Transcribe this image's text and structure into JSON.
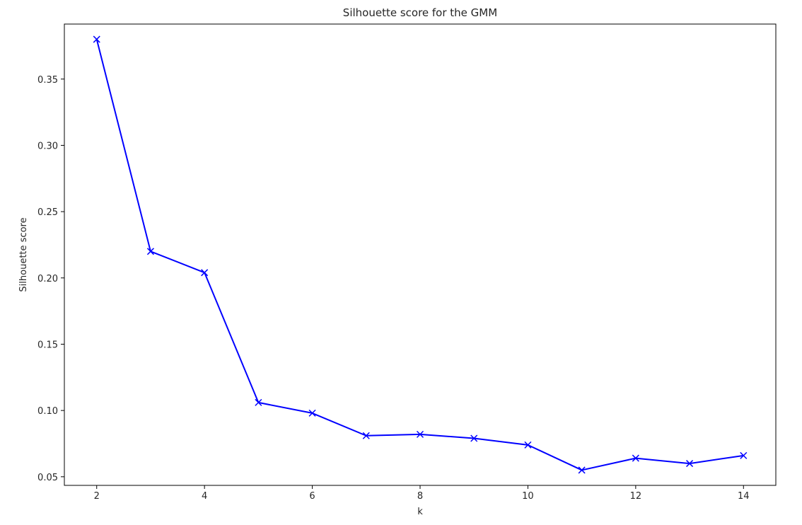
{
  "chart_data": {
    "type": "line",
    "title": "Silhouette score for the GMM",
    "xlabel": "k",
    "ylabel": "Silhouette score",
    "x": [
      2,
      3,
      4,
      5,
      6,
      7,
      8,
      9,
      10,
      11,
      12,
      13,
      14
    ],
    "series": [
      {
        "values": [
          0.38,
          0.22,
          0.204,
          0.106,
          0.098,
          0.081,
          0.082,
          0.079,
          0.074,
          0.055,
          0.064,
          0.06,
          0.066
        ],
        "color": "#0000ff",
        "marker": "x"
      }
    ],
    "xlim": [
      1.4,
      14.6
    ],
    "ylim": [
      0.0435,
      0.3915
    ],
    "xticks": [
      2,
      4,
      6,
      8,
      10,
      12,
      14
    ],
    "xtick_labels": [
      "2",
      "4",
      "6",
      "8",
      "10",
      "12",
      "14"
    ],
    "yticks": [
      0.05,
      0.1,
      0.15,
      0.2,
      0.25,
      0.3,
      0.35
    ],
    "ytick_labels": [
      "0.05",
      "0.10",
      "0.15",
      "0.20",
      "0.25",
      "0.30",
      "0.35"
    ],
    "grid": false,
    "legend": false
  }
}
